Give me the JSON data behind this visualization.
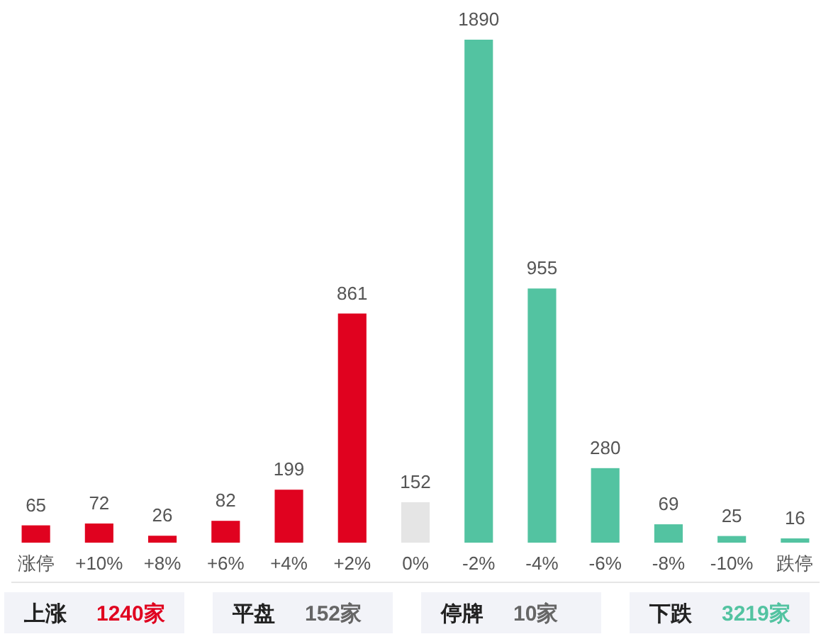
{
  "chart_data": [
    {
      "type": "bar",
      "categories": [
        "涨停",
        "+10%",
        "+8%",
        "+6%",
        "+4%",
        "+2%",
        "0%",
        "-2%",
        "-4%",
        "-6%",
        "-8%",
        "-10%",
        "跌停"
      ],
      "values": [
        65,
        72,
        26,
        82,
        199,
        861,
        152,
        1890,
        955,
        280,
        69,
        25,
        16
      ],
      "colors": [
        "#e0021f",
        "#e0021f",
        "#e0021f",
        "#e0021f",
        "#e0021f",
        "#e0021f",
        "#e5e5e5",
        "#53c3a1",
        "#53c3a1",
        "#53c3a1",
        "#53c3a1",
        "#53c3a1",
        "#53c3a1"
      ],
      "data_labels": true
    },
    {
      "type": "other",
      "categories": [
        "上涨",
        "平盘",
        "停牌",
        "下跌"
      ],
      "values": [
        1240,
        152,
        10,
        3219
      ],
      "value_labels": [
        "1240家",
        "152家",
        "10家",
        "3219家"
      ]
    }
  ]
}
